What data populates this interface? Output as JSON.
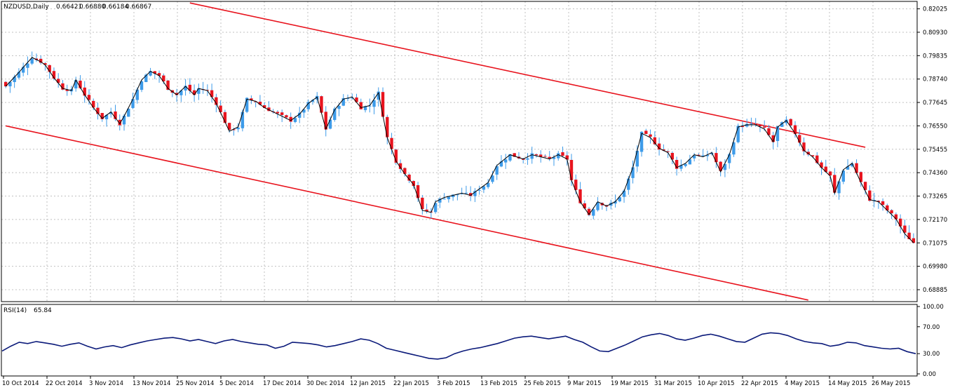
{
  "colors": {
    "background": "#ffffff",
    "grid": "#c0c0c0",
    "bull_candle": "#3d9be9",
    "bear_candle": "#e8141e",
    "wick": "#3d9be9",
    "trend_line": "#e8141e",
    "ma_line": "#000000",
    "rsi_line": "#0b1a7a",
    "frame": "#000000"
  },
  "chart_data": [
    {
      "type": "candlestick",
      "header": {
        "symbol": "NZDUSD,Daily",
        "open": "0.66421",
        "high": "0.66880",
        "low": "0.66184",
        "close": "0.66867"
      },
      "y_ticks": [
        "0.82025",
        "0.80930",
        "0.79835",
        "0.78740",
        "0.77645",
        "0.76550",
        "0.75455",
        "0.74360",
        "0.73265",
        "0.72170",
        "0.71075",
        "0.69980",
        "0.68885"
      ],
      "ylim": [
        0.6836,
        0.8234
      ],
      "x_tick_labels": [
        "10 Oct 2014",
        "22 Oct 2014",
        "3 Nov 2014",
        "13 Nov 2014",
        "25 Nov 2014",
        "5 Dec 2014",
        "17 Dec 2014",
        "30 Dec 2014",
        "12 Jan 2015",
        "22 Jan 2015",
        "3 Feb 2015",
        "13 Feb 2015",
        "25 Feb 2015",
        "9 Mar 2015",
        "19 Mar 2015",
        "31 Mar 2015",
        "10 Apr 2015",
        "22 Apr 2015",
        "4 May 2015",
        "14 May 2015",
        "26 May 2015"
      ],
      "grid": true,
      "trend_lines": [
        {
          "from_bar": 42,
          "from_value": 0.823,
          "to_bar": 196,
          "to_value": 0.7555
        },
        {
          "from_bar": 0,
          "from_value": 0.7655,
          "to_bar": 183,
          "to_value": 0.684
        }
      ],
      "close_path": [
        [
          0,
          0.784
        ],
        [
          3,
          0.7905
        ],
        [
          6,
          0.7975
        ],
        [
          8,
          0.7955
        ],
        [
          9,
          0.794
        ],
        [
          11,
          0.788
        ],
        [
          13,
          0.783
        ],
        [
          15,
          0.782
        ],
        [
          16,
          0.787
        ],
        [
          18,
          0.78
        ],
        [
          20,
          0.774
        ],
        [
          22,
          0.769
        ],
        [
          24,
          0.772
        ],
        [
          26,
          0.7665
        ],
        [
          27,
          0.77
        ],
        [
          29,
          0.778
        ],
        [
          31,
          0.787
        ],
        [
          33,
          0.791
        ],
        [
          35,
          0.789
        ],
        [
          37,
          0.783
        ],
        [
          39,
          0.78
        ],
        [
          41,
          0.784
        ],
        [
          43,
          0.78
        ],
        [
          44,
          0.783
        ],
        [
          46,
          0.782
        ],
        [
          48,
          0.776
        ],
        [
          51,
          0.763
        ],
        [
          53,
          0.765
        ],
        [
          55,
          0.778
        ],
        [
          57,
          0.777
        ],
        [
          59,
          0.774
        ],
        [
          61,
          0.772
        ],
        [
          63,
          0.77
        ],
        [
          65,
          0.768
        ],
        [
          67,
          0.771
        ],
        [
          69,
          0.776
        ],
        [
          71,
          0.779
        ],
        [
          73,
          0.764
        ],
        [
          75,
          0.773
        ],
        [
          77,
          0.778
        ],
        [
          79,
          0.779
        ],
        [
          81,
          0.774
        ],
        [
          83,
          0.775
        ],
        [
          85,
          0.781
        ],
        [
          87,
          0.76
        ],
        [
          89,
          0.749
        ],
        [
          91,
          0.743
        ],
        [
          93,
          0.738
        ],
        [
          95,
          0.726
        ],
        [
          97,
          0.725
        ],
        [
          98,
          0.73
        ],
        [
          100,
          0.732
        ],
        [
          102,
          0.733
        ],
        [
          104,
          0.734
        ],
        [
          106,
          0.733
        ],
        [
          108,
          0.736
        ],
        [
          110,
          0.739
        ],
        [
          112,
          0.747
        ],
        [
          115,
          0.752
        ],
        [
          118,
          0.75
        ],
        [
          120,
          0.752
        ],
        [
          122,
          0.751
        ],
        [
          124,
          0.75
        ],
        [
          126,
          0.752
        ],
        [
          128,
          0.75
        ],
        [
          129,
          0.74
        ],
        [
          131,
          0.73
        ],
        [
          133,
          0.724
        ],
        [
          135,
          0.73
        ],
        [
          137,
          0.728
        ],
        [
          139,
          0.73
        ],
        [
          141,
          0.735
        ],
        [
          143,
          0.746
        ],
        [
          145,
          0.762
        ],
        [
          147,
          0.76
        ],
        [
          149,
          0.755
        ],
        [
          151,
          0.753
        ],
        [
          153,
          0.746
        ],
        [
          155,
          0.748
        ],
        [
          157,
          0.752
        ],
        [
          159,
          0.751
        ],
        [
          161,
          0.753
        ],
        [
          163,
          0.744
        ],
        [
          165,
          0.752
        ],
        [
          167,
          0.765
        ],
        [
          169,
          0.766
        ],
        [
          171,
          0.766
        ],
        [
          173,
          0.764
        ],
        [
          175,
          0.758
        ],
        [
          176,
          0.765
        ],
        [
          178,
          0.768
        ],
        [
          180,
          0.762
        ],
        [
          182,
          0.754
        ],
        [
          184,
          0.751
        ],
        [
          186,
          0.746
        ],
        [
          188,
          0.742
        ],
        [
          189,
          0.734
        ],
        [
          191,
          0.745
        ],
        [
          193,
          0.748
        ],
        [
          195,
          0.739
        ],
        [
          197,
          0.731
        ],
        [
          199,
          0.73
        ],
        [
          201,
          0.726
        ],
        [
          203,
          0.722
        ],
        [
          205,
          0.715
        ],
        [
          207,
          0.7108
        ]
      ]
    },
    {
      "type": "line",
      "header": {
        "indicator": "RSI(14)",
        "value": "65.84"
      },
      "y_ticks": [
        "100.00",
        "70.00",
        "30.00",
        "0.00"
      ],
      "ylim": [
        0,
        100
      ],
      "grid": false,
      "series": [
        {
          "values": [
            34,
            41,
            47,
            45,
            48,
            46,
            44,
            41,
            44,
            46,
            41,
            37,
            40,
            42,
            39,
            43,
            46,
            49,
            51,
            53,
            54,
            52,
            49,
            51,
            48,
            45,
            49,
            51,
            48,
            46,
            44,
            43,
            38,
            41,
            47,
            46,
            45,
            43,
            40,
            42,
            45,
            48,
            52,
            50,
            45,
            38,
            35,
            32,
            29,
            26,
            23,
            22,
            24,
            30,
            34,
            37,
            39,
            42,
            45,
            49,
            53,
            55,
            56,
            54,
            52,
            54,
            56,
            51,
            47,
            40,
            34,
            33,
            38,
            43,
            49,
            55,
            58,
            60,
            57,
            52,
            50,
            53,
            57,
            59,
            56,
            52,
            48,
            47,
            53,
            59,
            61,
            60,
            57,
            52,
            48,
            46,
            45,
            41,
            43,
            47,
            46,
            42,
            40,
            38,
            37,
            38,
            33,
            30
          ]
        }
      ]
    }
  ]
}
